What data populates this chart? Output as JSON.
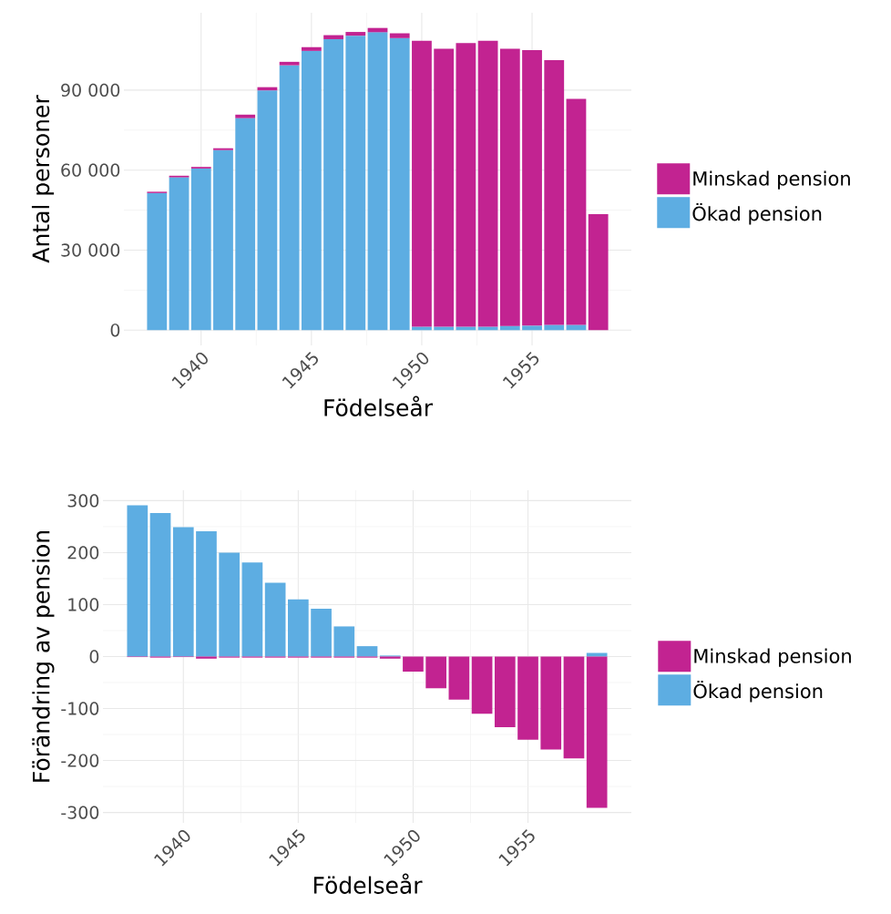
{
  "chart_data": [
    {
      "type": "bar",
      "stacked": true,
      "xlabel": "Födelseår",
      "ylabel": "Antal personer",
      "x": [
        1938,
        1939,
        1940,
        1941,
        1942,
        1943,
        1944,
        1945,
        1946,
        1947,
        1948,
        1949,
        1950,
        1951,
        1952,
        1953,
        1954,
        1955,
        1956,
        1957,
        1958
      ],
      "series": [
        {
          "name": "Ökad pension",
          "color": "#5dade2",
          "values": [
            51400,
            57300,
            60600,
            67500,
            79500,
            89900,
            99300,
            104700,
            109100,
            110400,
            111700,
            109500,
            1300,
            1300,
            1300,
            1300,
            1600,
            1700,
            2000,
            2000,
            null
          ]
        },
        {
          "name": "Minskad pension",
          "color": "#c22391",
          "values": [
            500,
            600,
            600,
            700,
            1300,
            1200,
            1300,
            1400,
            1500,
            1400,
            1600,
            1800,
            107200,
            104200,
            106300,
            107200,
            103900,
            103300,
            99200,
            84700,
            43500
          ]
        }
      ],
      "xlim": [
        1936.5,
        1959.5
      ],
      "xticks": [
        1940,
        1945,
        1950,
        1955
      ],
      "ylim": [
        -5700,
        119000
      ],
      "yticks": [
        0,
        {
          "value": 30000,
          "label": "30 000"
        },
        {
          "value": 60000,
          "label": "60 000"
        },
        {
          "value": 90000,
          "label": "90 000"
        }
      ],
      "grid": true,
      "legend": "right"
    },
    {
      "type": "bar",
      "stacked": true,
      "xlabel": "Födelseår",
      "ylabel": "Förändring av pension",
      "x": [
        1938,
        1939,
        1940,
        1941,
        1942,
        1943,
        1944,
        1945,
        1946,
        1947,
        1948,
        1949,
        1950,
        1951,
        1952,
        1953,
        1954,
        1955,
        1956,
        1957,
        1958
      ],
      "series": [
        {
          "name": "Ökad pension",
          "color": "#5dade2",
          "values": [
            291,
            276,
            249,
            241,
            200,
            181,
            142,
            110,
            92,
            58,
            20,
            2,
            null,
            null,
            null,
            null,
            null,
            null,
            null,
            null,
            7
          ]
        },
        {
          "name": "Minskad pension",
          "color": "#c22391",
          "values": [
            -1,
            -2,
            -1,
            -4,
            -2,
            -2,
            -2,
            -2,
            -2,
            -2,
            -2,
            -4,
            -29,
            -61,
            -83,
            -110,
            -136,
            -160,
            -179,
            -196,
            -291
          ]
        }
      ],
      "xlim": [
        1936.5,
        1959.5
      ],
      "xticks": [
        1940,
        1945,
        1950,
        1955
      ],
      "ylim": [
        -320,
        320
      ],
      "yticks": [
        -300,
        -200,
        -100,
        0,
        100,
        200,
        300
      ],
      "grid": true,
      "legend": "right"
    }
  ]
}
